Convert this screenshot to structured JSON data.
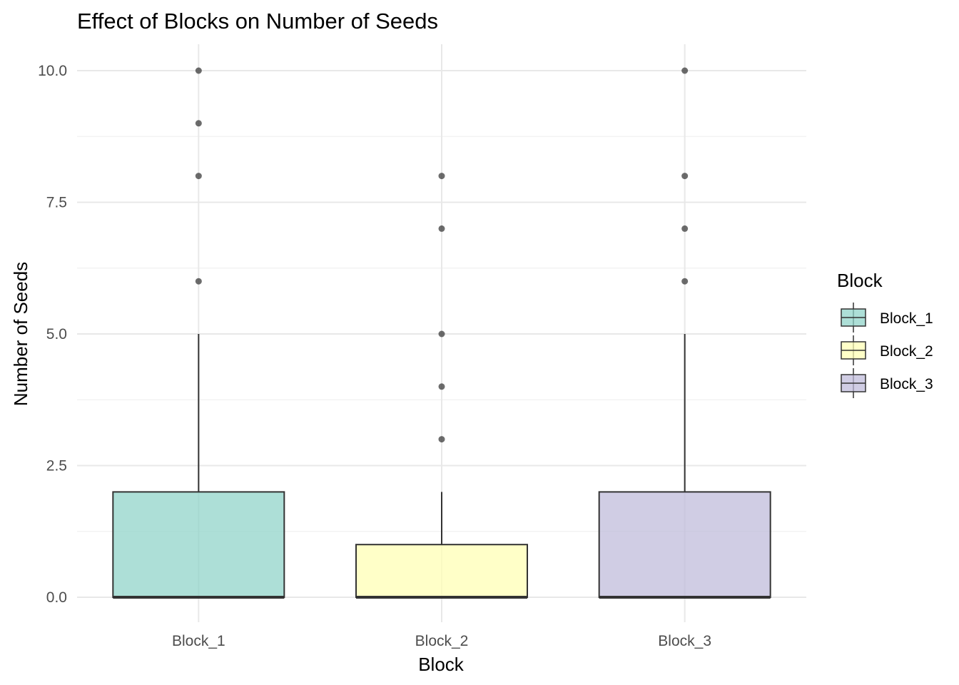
{
  "chart_data": {
    "type": "boxplot",
    "title": "Effect of Blocks on Number of Seeds",
    "xlabel": "Block",
    "ylabel": "Number of Seeds",
    "ylim": [
      -0.35,
      10.5
    ],
    "yticks": [
      "0.0",
      "2.5",
      "5.0",
      "7.5",
      "10.0"
    ],
    "ytick_values": [
      0,
      2.5,
      5,
      7.5,
      10
    ],
    "grid": true,
    "legend": {
      "title": "Block",
      "position": "right"
    },
    "categories": [
      "Block_1",
      "Block_2",
      "Block_3"
    ],
    "boxes": [
      {
        "name": "Block_1",
        "min": 0,
        "q1": 0,
        "median": 0,
        "q3": 2,
        "max": 5,
        "outliers": [
          6,
          8,
          9,
          10
        ],
        "color": "#8ed3c7"
      },
      {
        "name": "Block_2",
        "min": 0,
        "q1": 0,
        "median": 0,
        "q3": 1,
        "max": 2,
        "outliers": [
          3,
          4,
          5,
          7,
          8
        ],
        "color": "#ffffb3"
      },
      {
        "name": "Block_3",
        "min": 0,
        "q1": 0,
        "median": 0,
        "q3": 2,
        "max": 5,
        "outliers": [
          6,
          7,
          8,
          10
        ],
        "color": "#bebada"
      }
    ]
  }
}
